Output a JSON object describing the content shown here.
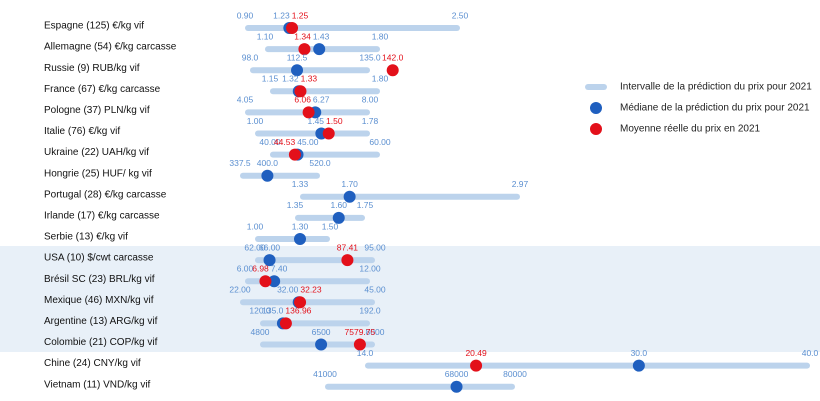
{
  "chart_data": {
    "type": "range",
    "colors": {
      "interval": "#bcd3ec",
      "median": "#1f5fbf",
      "mean": "#e3101a"
    },
    "legend": {
      "interval": "Intervalle de la prédiction du prix pour 2021",
      "median": "Médiane de la prédiction du prix pour 2021",
      "mean": "Moyenne réelle du prix en 2021"
    },
    "rows": [
      {
        "label": "Espagne (125) €/kg vif",
        "low": 0.9,
        "high": 2.5,
        "median": 1.23,
        "mean": 1.25,
        "value_labels": {
          "low": "0.90",
          "high": "2.50",
          "median": "1.23",
          "mean": "1.25"
        }
      },
      {
        "label": "Allemagne (54) €/kg carcasse",
        "low": 1.1,
        "high": 1.8,
        "median": 1.43,
        "mean": 1.34,
        "value_labels": {
          "low": "1.10",
          "high": "1.80",
          "median": "1.43",
          "mean": "1.34"
        }
      },
      {
        "label": "Russie (9) RUB/kg vif",
        "low": 98,
        "high": 135,
        "median": 112.5,
        "mean": 142,
        "value_labels": {
          "low": "98.0",
          "high": "135.0",
          "median": "112.5",
          "mean": "142.0"
        }
      },
      {
        "label": "France (67) €/kg carcasse",
        "low": 1.15,
        "high": 1.8,
        "median": 1.32,
        "mean": 1.33,
        "value_labels": {
          "low": "1.15",
          "high": "1.80",
          "median": "1.32",
          "mean": "1.33"
        }
      },
      {
        "label": "Pologne (37) PLN/kg vif",
        "low": 4.05,
        "high": 8,
        "median": 6.27,
        "mean": 6.06,
        "value_labels": {
          "low": "4.05",
          "high": "8.00",
          "median": "6.27",
          "mean": "6.06"
        }
      },
      {
        "label": "Italie (76) €/kg vif",
        "low": 1,
        "high": 1.78,
        "median": 1.45,
        "mean": 1.5,
        "value_labels": {
          "low": "1.00",
          "high": "1.78",
          "median": "1.45",
          "mean": "1.50"
        }
      },
      {
        "label": "Ukraine (22) UAH/kg vif",
        "low": 40,
        "high": 60,
        "median": 45,
        "mean": 44.53,
        "value_labels": {
          "low": "40.00",
          "high": "60.00",
          "median": "45.00",
          "mean": "44.53"
        }
      },
      {
        "label": "Hongrie (25) HUF/ kg vif",
        "low": 337.5,
        "high": 520,
        "median": 400,
        "mean": null,
        "value_labels": {
          "low": "337.5",
          "high": "520.0",
          "median": "400.0"
        }
      },
      {
        "label": "Portugal (28) €/kg carcasse",
        "low": 1.33,
        "high": 2.97,
        "median": 1.7,
        "mean": null,
        "value_labels": {
          "low": "1.33",
          "high": "2.97",
          "median": "1.70"
        }
      },
      {
        "label": "Irlande (17) €/kg carcasse",
        "low": 1.35,
        "high": 1.75,
        "median": 1.6,
        "mean": null,
        "value_labels": {
          "low": "1.35",
          "high": "1.75",
          "median": "1.60"
        }
      },
      {
        "label": "Serbie (13) €/kg vif",
        "low": 1,
        "high": 1.5,
        "median": 1.3,
        "mean": null,
        "value_labels": {
          "low": "1.00",
          "high": "1.50",
          "median": "1.30"
        }
      },
      {
        "label": "USA (10) $/cwt carcasse",
        "low": 62,
        "high": 95,
        "median": 66,
        "mean": 87.41,
        "value_labels": {
          "low": "62.00",
          "high": "95.00",
          "median": "66.00",
          "mean": "87.41"
        }
      },
      {
        "label": "Brésil SC (23) BRL/kg vif",
        "low": 6,
        "high": 12,
        "median": 7.4,
        "mean": 6.98,
        "value_labels": {
          "low": "6.00",
          "high": "12.00",
          "median": "7.40",
          "mean": "6.98"
        }
      },
      {
        "label": "Mexique (46) MXN/kg vif",
        "low": 22,
        "high": 45,
        "median": 32,
        "mean": 32.23,
        "value_labels": {
          "low": "22.00",
          "high": "45.00",
          "median": "32.00",
          "mean": "32.23"
        }
      },
      {
        "label": "Argentine (13) ARG/kg vif",
        "low": 120,
        "high": 192,
        "median": 135,
        "mean": 136.96,
        "value_labels": {
          "low": "120.0",
          "high": "192.0",
          "median": "135.0",
          "mean": "136.96"
        }
      },
      {
        "label": "Colombie (21) COP/kg vif",
        "low": 4800,
        "high": 8000,
        "median": 6500,
        "mean": 7579.75,
        "value_labels": {
          "low": "4800",
          "high": "8000",
          "median": "6500",
          "mean": "7579.75"
        }
      },
      {
        "label": "Chine (24) CNY/kg vif",
        "low": 14,
        "high": 40,
        "median": 30,
        "mean": 20.49,
        "value_labels": {
          "low": "14.0",
          "high": "40.0",
          "median": "30.0",
          "mean": "20.49"
        }
      },
      {
        "label": "Vietnam (11) VND/kg vif",
        "low": 41000,
        "high": 80000,
        "median": 68000,
        "mean": null,
        "value_labels": {
          "low": "41000",
          "high": "80000",
          "median": "68000"
        }
      }
    ]
  }
}
